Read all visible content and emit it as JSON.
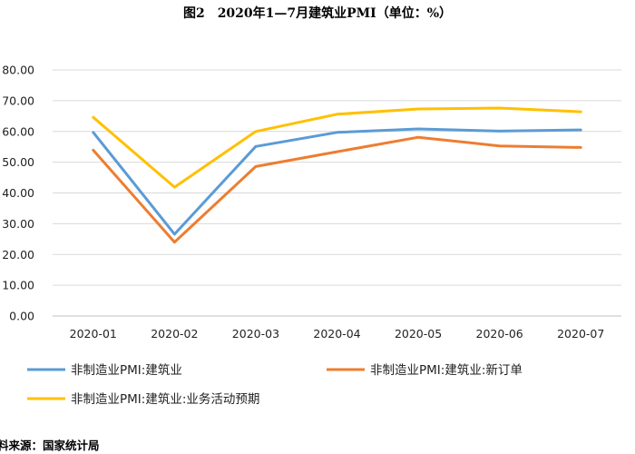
{
  "title": "图2　2020年1—7月建筑业PMI（单位：%）",
  "source": "料来源：国家统计局",
  "chart_data": {
    "type": "line",
    "categories": [
      "2020-01",
      "2020-02",
      "2020-03",
      "2020-04",
      "2020-05",
      "2020-06",
      "2020-07"
    ],
    "y_tick_labels": [
      "0.00",
      "10.00",
      "20.00",
      "30.00",
      "40.00",
      "50.00",
      "60.00",
      "70.00",
      "80.00"
    ],
    "ylim": [
      0,
      80
    ],
    "grid": true,
    "legend_position": "bottom",
    "series": [
      {
        "name": "非制造业PMI:建筑业",
        "color": "#5B9BD5",
        "values": [
          59.7,
          26.6,
          55.1,
          59.7,
          60.8,
          60.1,
          60.5
        ]
      },
      {
        "name": "非制造业PMI:建筑业:新订单",
        "color": "#ED7D31",
        "values": [
          53.9,
          24.0,
          48.6,
          53.4,
          58.1,
          55.3,
          54.8
        ]
      },
      {
        "name": "非制造业PMI:建筑业:业务活动预期",
        "color": "#FFC000",
        "values": [
          64.6,
          41.9,
          60.0,
          65.6,
          67.3,
          67.6,
          66.4
        ]
      }
    ]
  }
}
